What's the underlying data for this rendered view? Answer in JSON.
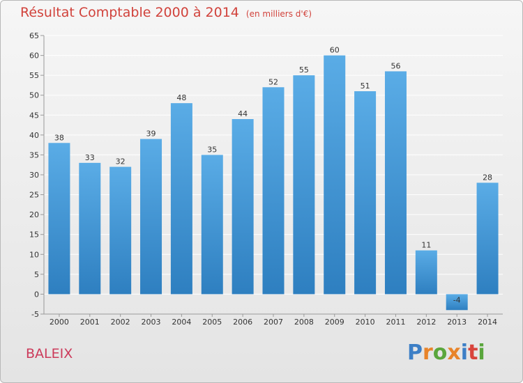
{
  "header": {
    "title": "Résultat Comptable 2000 à 2014",
    "subtitle": "(en milliers d'€)"
  },
  "footer": {
    "commune": "BALEIX",
    "logo_letters": [
      "P",
      "r",
      "o",
      "x",
      "i",
      "t",
      "i"
    ],
    "logo_colors": [
      "#3d7fc6",
      "#e8842a",
      "#5aa63c",
      "#e8842a",
      "#3d7fc6",
      "#d8443c",
      "#5aa63c"
    ]
  },
  "colors": {
    "bar_light": "#5aace6",
    "bar_dark": "#2e7fc0",
    "grid": "#ffffff",
    "axis_text": "#333333"
  },
  "chart_data": {
    "type": "bar",
    "title": "Résultat Comptable 2000 à 2014",
    "subtitle": "(en milliers d'€)",
    "categories": [
      "2000",
      "2001",
      "2002",
      "2003",
      "2004",
      "2005",
      "2006",
      "2007",
      "2008",
      "2009",
      "2010",
      "2011",
      "2012",
      "2013",
      "2014"
    ],
    "values": [
      38,
      33,
      32,
      39,
      48,
      35,
      44,
      52,
      55,
      60,
      51,
      56,
      11,
      -4,
      28
    ],
    "labels": [
      "38",
      "33",
      "32",
      "39",
      "48",
      "35",
      "44",
      "52",
      "55",
      "60",
      "51",
      "56",
      "11",
      "-4",
      "28"
    ],
    "ylim": [
      -5,
      65
    ],
    "yticks": [
      -5,
      0,
      5,
      10,
      15,
      20,
      25,
      30,
      35,
      40,
      45,
      50,
      55,
      60,
      65
    ],
    "xlabel": "",
    "ylabel": "",
    "grid": true
  }
}
